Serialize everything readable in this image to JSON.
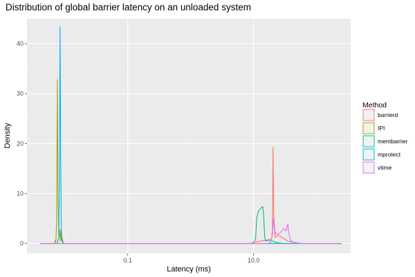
{
  "chart_data": {
    "type": "line",
    "title": "Distribution of global barrier latency on an unloaded system",
    "xlabel": "Latency (ms)",
    "ylabel": "Density",
    "x_scale": "log10",
    "xlim": [
      0.0025,
      350
    ],
    "ylim": [
      -2,
      45
    ],
    "x_ticks": [
      0.1,
      10.0
    ],
    "x_tick_labels": [
      "0.1",
      "10.0"
    ],
    "y_ticks": [
      0,
      10,
      20,
      30,
      40
    ],
    "y_tick_labels": [
      "0",
      "10",
      "20",
      "30",
      "40"
    ],
    "grid": true,
    "legend": {
      "title": "Method",
      "position": "right"
    },
    "series": [
      {
        "name": "barrierd",
        "color": "#F8766D",
        "points": [
          [
            0.004,
            0
          ],
          [
            9.0,
            0
          ],
          [
            10.0,
            0.2
          ],
          [
            12.0,
            0.4
          ],
          [
            15.0,
            0.6
          ],
          [
            18.0,
            0.8
          ],
          [
            19.5,
            1.0
          ],
          [
            20.0,
            3.0
          ],
          [
            20.4,
            19.2
          ],
          [
            20.9,
            6.0
          ],
          [
            22.0,
            1.2
          ],
          [
            25.0,
            1.6
          ],
          [
            30.0,
            1.0
          ],
          [
            35.0,
            0.5
          ],
          [
            40.0,
            0.3
          ],
          [
            50.0,
            0.1
          ],
          [
            60.0,
            0
          ],
          [
            250,
            0
          ]
        ]
      },
      {
        "name": "IPI",
        "color": "#A3A500",
        "points": [
          [
            0.004,
            0
          ],
          [
            0.0068,
            0
          ],
          [
            0.007,
            0.6
          ],
          [
            0.0072,
            0.2
          ],
          [
            0.0074,
            4.5
          ],
          [
            0.0076,
            32.8
          ],
          [
            0.0078,
            8.0
          ],
          [
            0.008,
            1.5
          ],
          [
            0.0082,
            2.8
          ],
          [
            0.0084,
            0.5
          ],
          [
            0.0086,
            2.7
          ],
          [
            0.0088,
            0.5
          ],
          [
            0.0091,
            1.0
          ],
          [
            0.0094,
            0.2
          ],
          [
            0.01,
            0
          ],
          [
            250,
            0
          ]
        ]
      },
      {
        "name": "membarrier",
        "color": "#00BF7D",
        "points": [
          [
            0.004,
            0
          ],
          [
            9.5,
            0
          ],
          [
            10.2,
            0.3
          ],
          [
            10.8,
            1.0
          ],
          [
            11.2,
            5.0
          ],
          [
            12.0,
            6.5
          ],
          [
            13.0,
            7.0
          ],
          [
            14.0,
            7.4
          ],
          [
            14.5,
            5.5
          ],
          [
            15.0,
            1.5
          ],
          [
            15.5,
            0.5
          ],
          [
            17.0,
            0.6
          ],
          [
            19.0,
            0.6
          ],
          [
            22.0,
            0.3
          ],
          [
            25.0,
            0.1
          ],
          [
            30.0,
            0
          ],
          [
            250,
            0
          ]
        ]
      },
      {
        "name": "mprotect",
        "color": "#00B0F6",
        "points": [
          [
            0.004,
            0
          ],
          [
            0.0076,
            0
          ],
          [
            0.008,
            1.2
          ],
          [
            0.0082,
            12.0
          ],
          [
            0.0084,
            43.4
          ],
          [
            0.0086,
            16.0
          ],
          [
            0.0088,
            2.5
          ],
          [
            0.009,
            1.0
          ],
          [
            0.0092,
            0.2
          ],
          [
            0.0095,
            0
          ],
          [
            250,
            0
          ]
        ]
      },
      {
        "name": "vtime",
        "color": "#E76BF3",
        "points": [
          [
            0.004,
            0
          ],
          [
            17.0,
            0
          ],
          [
            19.0,
            0.3
          ],
          [
            20.0,
            2.0
          ],
          [
            20.6,
            4.9
          ],
          [
            21.5,
            2.8
          ],
          [
            23.0,
            1.8
          ],
          [
            26.0,
            2.0
          ],
          [
            30.0,
            3.0
          ],
          [
            33.0,
            2.5
          ],
          [
            35.0,
            3.9
          ],
          [
            36.5,
            2.0
          ],
          [
            39.0,
            0.5
          ],
          [
            45.0,
            0.2
          ],
          [
            55.0,
            0
          ],
          [
            250,
            0
          ]
        ]
      }
    ]
  }
}
